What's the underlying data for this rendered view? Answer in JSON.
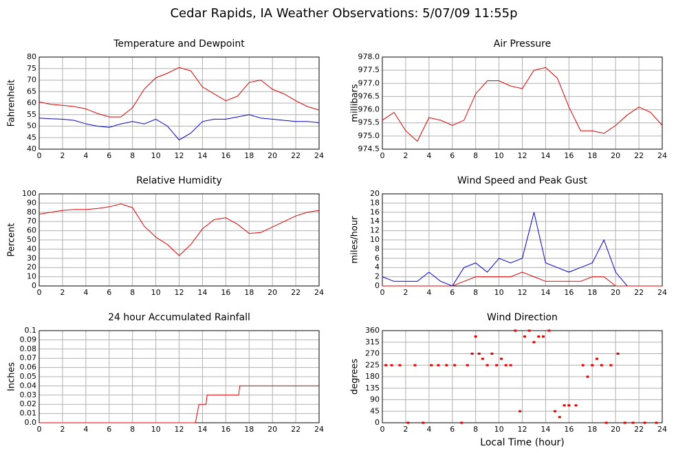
{
  "title": "Cedar Rapids, IA Weather Observations: 5/07/09 11:55p",
  "chart_data": [
    {
      "type": "line",
      "title": "Temperature and Dewpoint",
      "y_label": "Fahrenheit",
      "x": [
        0,
        1,
        2,
        3,
        4,
        5,
        6,
        7,
        8,
        9,
        10,
        11,
        12,
        13,
        14,
        15,
        16,
        17,
        18,
        19,
        20,
        21,
        22,
        23,
        24
      ],
      "series": [
        {
          "color": "#e00000",
          "values": [
            60.5,
            59.5,
            59,
            58.5,
            57.5,
            55.5,
            54,
            54,
            58,
            66,
            71,
            73,
            75.5,
            74,
            67,
            64,
            61,
            63,
            69,
            70,
            66,
            64,
            61,
            58.5,
            57
          ]
        },
        {
          "color": "#0000cc",
          "values": [
            53.5,
            53.2,
            53,
            52.5,
            51,
            50,
            49.5,
            51,
            52,
            51,
            53,
            50,
            44,
            47,
            52,
            53,
            53,
            54,
            55,
            53.5,
            53,
            52.5,
            52,
            52,
            51.5
          ]
        }
      ],
      "xlim": [
        0,
        24
      ],
      "xticks": [
        0,
        2,
        4,
        6,
        8,
        10,
        12,
        14,
        16,
        18,
        20,
        22,
        24
      ],
      "ylim": [
        40,
        80
      ],
      "yticks": [
        40,
        45,
        50,
        55,
        60,
        65,
        70,
        75,
        80
      ],
      "grid": true
    },
    {
      "type": "line",
      "title": "Air Pressure",
      "y_label": "millibars",
      "x": [
        0,
        1,
        2,
        3,
        4,
        5,
        6,
        7,
        8,
        9,
        10,
        11,
        12,
        13,
        14,
        15,
        16,
        17,
        18,
        19,
        20,
        21,
        22,
        23,
        24
      ],
      "series": [
        {
          "color": "#e00000",
          "values": [
            975.6,
            975.9,
            975.2,
            974.8,
            975.7,
            975.6,
            975.4,
            975.6,
            976.6,
            977.1,
            977.1,
            976.9,
            976.8,
            977.5,
            977.6,
            977.2,
            976.1,
            975.2,
            975.2,
            975.1,
            975.4,
            975.8,
            976.1,
            975.9,
            975.4
          ]
        }
      ],
      "xlim": [
        0,
        24
      ],
      "xticks": [
        0,
        2,
        4,
        6,
        8,
        10,
        12,
        14,
        16,
        18,
        20,
        22,
        24
      ],
      "ylim": [
        974.5,
        978
      ],
      "yticks": [
        974.5,
        {
          "value": 975,
          "label": "975.0"
        },
        975.5,
        {
          "value": 976,
          "label": "976.0"
        },
        976.5,
        {
          "value": 977,
          "label": "977.0"
        },
        977.5,
        {
          "value": 978,
          "label": "978.0"
        }
      ],
      "grid": true
    },
    {
      "type": "line",
      "title": "Relative Humidity",
      "y_label": "Percent",
      "x": [
        0,
        1,
        2,
        3,
        4,
        5,
        6,
        7,
        8,
        9,
        10,
        11,
        12,
        13,
        14,
        15,
        16,
        17,
        18,
        19,
        20,
        21,
        22,
        23,
        24
      ],
      "series": [
        {
          "color": "#e00000",
          "values": [
            78,
            80,
            82,
            83,
            83,
            84,
            86,
            89,
            85,
            65,
            53,
            45,
            33,
            45,
            62,
            72,
            74,
            67,
            57,
            58,
            64,
            70,
            76,
            80,
            82
          ]
        }
      ],
      "xlim": [
        0,
        24
      ],
      "xticks": [
        0,
        2,
        4,
        6,
        8,
        10,
        12,
        14,
        16,
        18,
        20,
        22,
        24
      ],
      "ylim": [
        0,
        100
      ],
      "yticks": [
        0,
        10,
        20,
        30,
        40,
        50,
        60,
        70,
        80,
        90,
        100
      ],
      "grid": true
    },
    {
      "type": "line",
      "title": "Wind Speed and Peak Gust",
      "y_label": "miles/hour",
      "x": [
        0,
        1,
        2,
        3,
        4,
        5,
        6,
        7,
        8,
        9,
        10,
        11,
        12,
        13,
        14,
        15,
        16,
        17,
        18,
        19,
        20,
        21,
        22,
        23,
        24
      ],
      "series": [
        {
          "color": "#0000cc",
          "values": [
            2,
            1,
            1,
            1,
            3,
            1,
            0,
            4,
            5,
            3,
            6,
            5,
            6,
            16,
            5,
            4,
            3,
            4,
            5,
            10,
            3,
            0,
            0,
            0,
            0
          ]
        },
        {
          "color": "#e00000",
          "values": [
            0,
            0,
            0,
            0,
            0,
            0,
            0,
            1,
            2,
            2,
            2,
            2,
            3,
            2,
            1,
            1,
            1,
            1,
            2,
            2,
            0,
            0,
            0,
            0,
            0
          ]
        }
      ],
      "xlim": [
        0,
        24
      ],
      "xticks": [
        0,
        2,
        4,
        6,
        8,
        10,
        12,
        14,
        16,
        18,
        20,
        22,
        24
      ],
      "ylim": [
        0,
        20
      ],
      "yticks": [
        0,
        2,
        4,
        6,
        8,
        10,
        12,
        14,
        16,
        18,
        20
      ],
      "grid": true
    },
    {
      "type": "line",
      "title": "24 hour Accumulated Rainfall",
      "y_label": "Inches",
      "x": [
        0,
        13.4,
        13.7,
        14.3,
        14.4,
        17.1,
        17.2,
        24
      ],
      "series": [
        {
          "color": "#e00000",
          "values": [
            0,
            0,
            0.02,
            0.02,
            0.03,
            0.03,
            0.04,
            0.04
          ]
        }
      ],
      "xlim": [
        0,
        24
      ],
      "xticks": [
        0,
        2,
        4,
        6,
        8,
        10,
        12,
        14,
        16,
        18,
        20,
        22,
        24
      ],
      "ylim": [
        0,
        0.1
      ],
      "yticks": [
        {
          "value": 0,
          "label": "0.0"
        },
        0.01,
        0.02,
        0.03,
        0.04,
        0.05,
        0.06,
        0.07,
        0.08,
        0.09,
        0.1
      ],
      "grid": true
    },
    {
      "type": "scatter",
      "title": "Wind Direction",
      "y_label": "degrees",
      "x_label": "Local Time (hour)",
      "x": [
        0.3,
        0.8,
        1.5,
        2.2,
        2.8,
        3.5,
        4.2,
        4.8,
        5.5,
        6.2,
        6.8,
        7.3,
        7.7,
        8.0,
        8.3,
        8.6,
        9.0,
        9.4,
        9.8,
        10.2,
        10.6,
        11.0,
        11.4,
        11.8,
        12.2,
        12.6,
        13.0,
        13.4,
        13.8,
        14.3,
        14.8,
        15.2,
        15.6,
        16.0,
        16.6,
        17.2,
        17.6,
        18.0,
        18.4,
        18.8,
        19.2,
        19.6,
        20.2,
        20.8,
        21.5,
        22.5,
        23.5
      ],
      "series": [
        {
          "color": "#e00000",
          "values": [
            225,
            225,
            225,
            0,
            225,
            0,
            225,
            225,
            225,
            225,
            0,
            225,
            270,
            337,
            270,
            250,
            225,
            270,
            225,
            250,
            225,
            225,
            360,
            45,
            337,
            360,
            315,
            337,
            337,
            360,
            45,
            22,
            68,
            68,
            68,
            225,
            180,
            225,
            250,
            225,
            0,
            225,
            270,
            0,
            0,
            0,
            0
          ]
        }
      ],
      "xlim": [
        0,
        24
      ],
      "xticks": [
        0,
        2,
        4,
        6,
        8,
        10,
        12,
        14,
        16,
        18,
        20,
        22,
        24
      ],
      "ylim": [
        0,
        360
      ],
      "yticks": [
        0,
        45,
        90,
        135,
        180,
        225,
        270,
        315,
        360
      ],
      "grid": true
    }
  ]
}
